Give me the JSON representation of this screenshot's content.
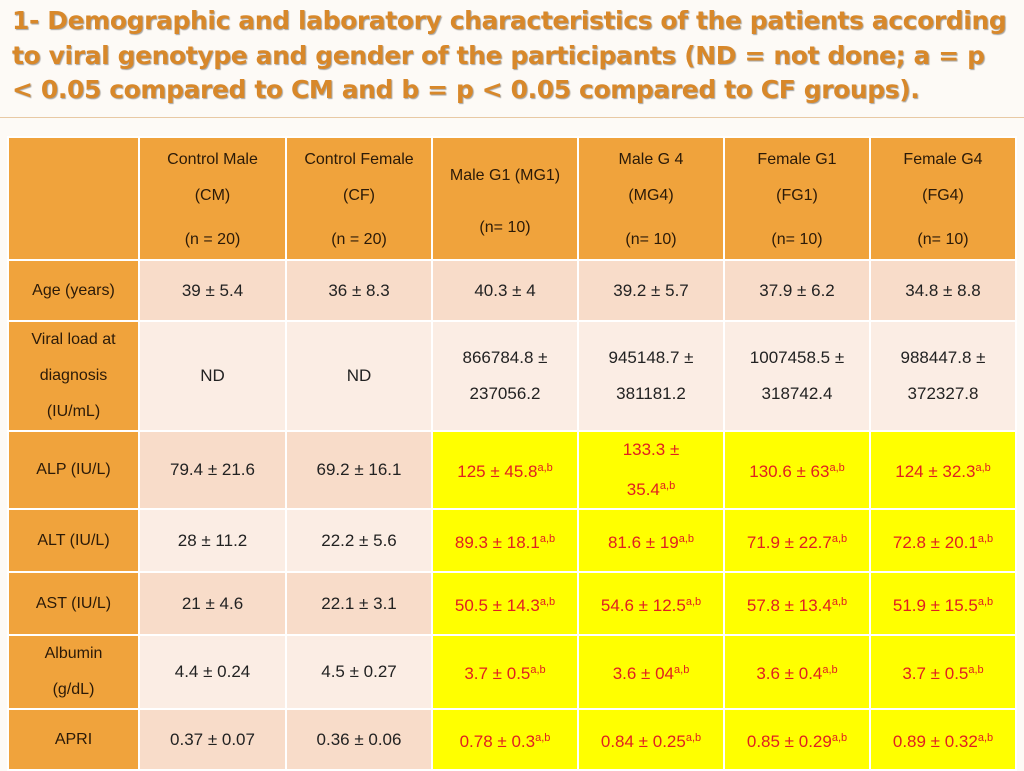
{
  "title": "1- Demographic and laboratory characteristics of the patients according to viral genotype and gender of the participants (ND = not done; a = p < 0.05 compared to CM and b = p < 0.05 compared to CF groups).",
  "columns": [
    {
      "l1": "Control Male",
      "l2": "(CM)",
      "l3": "(n = 20)"
    },
    {
      "l1": "Control Female",
      "l2": "(CF)",
      "l3": "(n = 20)"
    },
    {
      "l1": "Male G1 (MG1)",
      "l2": "(n= 10)"
    },
    {
      "l1": "Male G 4",
      "l2": "(MG4)",
      "l3": "(n= 10)"
    },
    {
      "l1": "Female G1",
      "l2": "(FG1)",
      "l3": "(n= 10)"
    },
    {
      "l1": "Female G4",
      "l2": "(FG4)",
      "l3": "(n= 10)"
    }
  ],
  "rows": [
    {
      "label": [
        "Age (years)"
      ],
      "values": [
        "39 ± 5.4",
        "36 ± 8.3",
        "40.3 ± 4",
        "39.2 ± 5.7",
        "37.9 ± 6.2",
        "34.8 ± 8.8"
      ],
      "sup": [
        "",
        "",
        "",
        "",
        "",
        ""
      ]
    },
    {
      "label": [
        "Viral load at",
        "diagnosis",
        "(IU/mL)"
      ],
      "values": [
        "ND",
        "ND",
        "866784.8 ±\n237056.2",
        "945148.7 ±\n381181.2",
        "1007458.5 ±\n318742.4",
        "988447.8 ±\n372327.8"
      ],
      "sup": [
        "",
        "",
        "",
        "",
        "",
        ""
      ]
    },
    {
      "label": [
        "ALP (IU/L)"
      ],
      "values": [
        "79.4 ± 21.6",
        "69.2 ± 16.1",
        "125 ± 45.8",
        "133.3 ±\n35.4",
        "130.6 ± 63",
        "124 ± 32.3"
      ],
      "sup": [
        "",
        "",
        "a,b",
        "a,b",
        "a,b",
        "a,b"
      ]
    },
    {
      "label": [
        "ALT (IU/L)"
      ],
      "values": [
        "28 ± 11.2",
        "22.2 ± 5.6",
        "89.3 ± 18.1",
        "81.6 ± 19",
        "71.9 ± 22.7",
        "72.8 ± 20.1"
      ],
      "sup": [
        "",
        "",
        "a,b",
        "a,b",
        "a,b",
        "a,b"
      ]
    },
    {
      "label": [
        "AST (IU/L)"
      ],
      "values": [
        "21 ± 4.6",
        "22.1 ± 3.1",
        "50.5 ± 14.3",
        "54.6 ± 12.5",
        "57.8 ± 13.4",
        "51.9 ± 15.5"
      ],
      "sup": [
        "",
        "",
        "a,b",
        "a,b",
        "a,b",
        "a,b"
      ]
    },
    {
      "label": [
        "Albumin",
        "(g/dL)"
      ],
      "values": [
        "4.4 ± 0.24",
        "4.5 ± 0.27",
        "3.7 ± 0.5",
        "3.6 ± 04",
        "3.6 ± 0.4",
        "3.7 ± 0.5"
      ],
      "sup": [
        "",
        "",
        "a,b",
        "a,b",
        "a,b",
        "a,b"
      ]
    },
    {
      "label": [
        "APRI"
      ],
      "values": [
        "0.37 ± 0.07",
        "0.36 ± 0.06",
        "0.78 ± 0.3",
        "0.84 ± 0.25",
        "0.85 ± 0.29",
        "0.89 ± 0.32"
      ],
      "sup": [
        "",
        "",
        "a,b",
        "a,b",
        "a,b",
        "a,b"
      ]
    }
  ],
  "colors": {
    "header": "#f0a33c",
    "row_dark": "#f8dcc9",
    "row_light": "#fbede4",
    "highlight": "#ffff00",
    "highlight_text": "#e02020",
    "title": "#d8882a"
  }
}
